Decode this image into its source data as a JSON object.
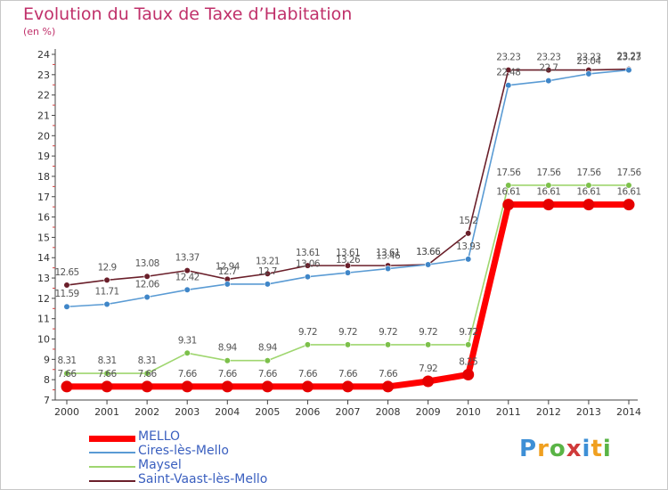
{
  "title": "Evolution du Taux de Taxe d’Habitation",
  "unit_label": "(en %)",
  "logo": {
    "text": "Proxiti",
    "letters": [
      "P",
      "r",
      "o",
      "x",
      "i",
      "t",
      "i"
    ],
    "colors": [
      "#3d8fd6",
      "#f0a020",
      "#5ab446",
      "#d03a3a",
      "#3d8fd6",
      "#f0a020",
      "#5ab446"
    ]
  },
  "chart_data": {
    "type": "line",
    "title": "Evolution du Taux de Taxe d’Habitation",
    "ylabel": "(en %)",
    "x": [
      "2000",
      "2001",
      "2002",
      "2003",
      "2004",
      "2005",
      "2006",
      "2007",
      "2008",
      "2009",
      "2010",
      "2011",
      "2012",
      "2013",
      "2014"
    ],
    "ylim": [
      7,
      24
    ],
    "yticks": [
      "7",
      "8",
      "9",
      "10",
      "11",
      "12",
      "13",
      "14",
      "15",
      "16",
      "17",
      "18",
      "19",
      "20",
      "21",
      "22",
      "23",
      "24"
    ],
    "grid": false,
    "legend_position": "bottom-left",
    "series": [
      {
        "name": "Saint-Vaast-lès-Mello",
        "color": "#6a1f2a",
        "marker": "#6a1f2a",
        "values": [
          12.65,
          12.9,
          13.08,
          13.37,
          12.94,
          13.21,
          13.61,
          13.61,
          13.61,
          13.66,
          15.2,
          23.23,
          23.23,
          23.23,
          23.27
        ],
        "labels": [
          "12.65",
          "12.9",
          "13.08",
          "13.37",
          "12.94",
          "13.21",
          "13.61",
          "13.61",
          "13.61",
          "13.66",
          "15.2",
          "23.23",
          "23.23",
          "23.23",
          "23.27"
        ]
      },
      {
        "name": "Cires-lès-Mello",
        "color": "#5a9bd4",
        "marker": "#3f86c8",
        "values": [
          11.59,
          11.71,
          12.06,
          12.42,
          12.7,
          12.7,
          13.06,
          13.26,
          13.46,
          13.66,
          13.93,
          22.48,
          22.7,
          23.04,
          23.23
        ],
        "labels": [
          "11.59",
          "11.71",
          "12.06",
          "12.42",
          "12.7",
          "12.7",
          "13.06",
          "13.26",
          "13.46",
          "13.66",
          "13.93",
          "22.48",
          "22.7",
          "23.04",
          "23.23"
        ]
      },
      {
        "name": "Maysel",
        "color": "#9fd66f",
        "marker": "#7cc04a",
        "values": [
          8.31,
          8.31,
          8.31,
          9.31,
          8.94,
          8.94,
          9.72,
          9.72,
          9.72,
          9.72,
          9.72,
          17.56,
          17.56,
          17.56,
          17.56
        ],
        "labels": [
          "8.31",
          "8.31",
          "8.31",
          "9.31",
          "8.94",
          "8.94",
          "9.72",
          "9.72",
          "9.72",
          "9.72",
          "9.72",
          "17.56",
          "17.56",
          "17.56",
          "17.56"
        ]
      },
      {
        "name": "MELLO",
        "color": "#ff0000",
        "marker": "#e60000",
        "values": [
          7.66,
          7.66,
          7.66,
          7.66,
          7.66,
          7.66,
          7.66,
          7.66,
          7.66,
          7.92,
          8.25,
          16.61,
          16.61,
          16.61,
          16.61
        ],
        "labels": [
          "7.66",
          "7.66",
          "7.66",
          "7.66",
          "7.66",
          "7.66",
          "7.66",
          "7.66",
          "7.66",
          "7.92",
          "8.25",
          "16.61",
          "16.61",
          "16.61",
          "16.61"
        ]
      }
    ]
  },
  "legend": [
    {
      "name": "MELLO",
      "color": "#ff0000"
    },
    {
      "name": "Cires-lès-Mello",
      "color": "#5a9bd4"
    },
    {
      "name": "Maysel",
      "color": "#9fd66f"
    },
    {
      "name": "Saint-Vaast-lès-Mello",
      "color": "#6a1f2a"
    }
  ]
}
